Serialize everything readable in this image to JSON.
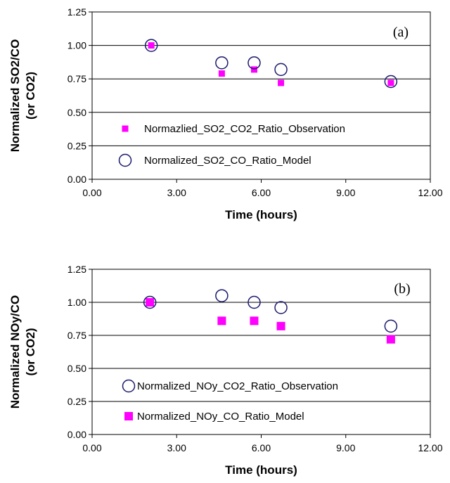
{
  "chart_data": [
    {
      "type": "scatter",
      "panel_label": "(a)",
      "xlabel": "Time (hours)",
      "ylabel_lines": [
        "Normalized SO2/CO",
        "(or CO2)"
      ],
      "xlim": [
        0,
        12
      ],
      "ylim": [
        0,
        1.25
      ],
      "xticks": [
        "0.00",
        "3.00",
        "6.00",
        "9.00",
        "12.00"
      ],
      "yticks": [
        "0.00",
        "0.25",
        "0.50",
        "0.75",
        "1.00",
        "1.25"
      ],
      "grid": true,
      "legend_position": "bottom-left",
      "series": [
        {
          "name": "Normazlied_SO2_CO2_Ratio_Observation",
          "marker": "square",
          "color": "#ff00ff",
          "marker_size": "small",
          "x": [
            2.1,
            4.6,
            5.75,
            6.7,
            10.6
          ],
          "y": [
            1.0,
            0.79,
            0.82,
            0.72,
            0.72
          ]
        },
        {
          "name": "Normalized_SO2_CO_Ratio_Model",
          "marker": "open-circle",
          "color": "#1a1a6e",
          "marker_size": "large",
          "x": [
            2.1,
            4.6,
            5.75,
            6.7,
            10.6
          ],
          "y": [
            1.0,
            0.87,
            0.87,
            0.82,
            0.73
          ]
        }
      ]
    },
    {
      "type": "scatter",
      "panel_label": "(b)",
      "xlabel": "Time (hours)",
      "ylabel_lines": [
        "Normalized NOy/CO",
        "(or CO2)"
      ],
      "xlim": [
        0,
        12
      ],
      "ylim": [
        0,
        1.25
      ],
      "xticks": [
        "0.00",
        "3.00",
        "6.00",
        "9.00",
        "12.00"
      ],
      "yticks": [
        "0.00",
        "0.25",
        "0.50",
        "0.75",
        "1.00",
        "1.25"
      ],
      "grid": true,
      "legend_position": "bottom-left",
      "series": [
        {
          "name": "Normalized_NOy_CO2_Ratio_Observation",
          "marker": "open-circle",
          "color": "#1a1a6e",
          "marker_size": "large",
          "x": [
            2.05,
            4.6,
            5.75,
            6.7,
            10.6
          ],
          "y": [
            1.0,
            1.05,
            1.0,
            0.96,
            0.82
          ]
        },
        {
          "name": "Normalized_NOy_CO_Ratio_Model",
          "marker": "square",
          "color": "#ff00ff",
          "marker_size": "large",
          "x": [
            2.05,
            4.6,
            5.75,
            6.7,
            10.6
          ],
          "y": [
            1.0,
            0.86,
            0.86,
            0.82,
            0.72
          ]
        }
      ]
    }
  ]
}
